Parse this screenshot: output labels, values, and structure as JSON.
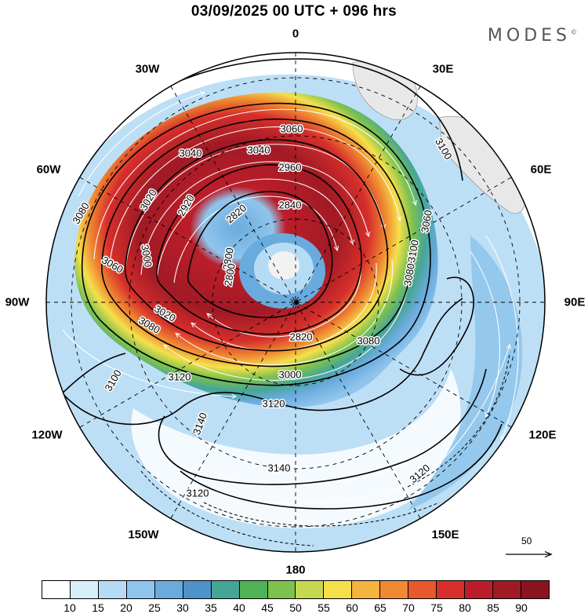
{
  "header": {
    "title": "03/09/2025  00 UTC  + 096 hrs",
    "brand": "MODES",
    "brand_mark": "©"
  },
  "longitudes": {
    "top": "0",
    "ne30": "30E",
    "ne60": "60E",
    "east": "90E",
    "se120": "120E",
    "se150": "150E",
    "bottom": "180",
    "sw150": "150W",
    "sw120": "120W",
    "west": "90W",
    "nw60": "60W",
    "nw30": "30W"
  },
  "contours": {
    "labels": [
      "3060",
      "3040",
      "3040",
      "3020",
      "2960",
      "2920",
      "2840",
      "2820",
      "2800",
      "2800",
      "3000",
      "3020",
      "3080",
      "3060",
      "3080",
      "3100",
      "3100",
      "3080",
      "3060",
      "3080",
      "2820",
      "3000",
      "3120",
      "3120",
      "3100",
      "3140",
      "3140",
      "3120",
      "3120"
    ]
  },
  "colorbar": {
    "colors": [
      "#ffffff",
      "#d7eefb",
      "#b6dcf5",
      "#8fc5ec",
      "#6aabde",
      "#4e92cb",
      "#46a696",
      "#4fb355",
      "#7ec24e",
      "#c5d84f",
      "#f5e04c",
      "#f5b340",
      "#f08a32",
      "#e8582d",
      "#d62f2b",
      "#bb1e2a",
      "#a01a25",
      "#8a1520"
    ],
    "ticks": [
      "10",
      "15",
      "20",
      "25",
      "30",
      "35",
      "40",
      "45",
      "50",
      "55",
      "60",
      "65",
      "70",
      "75",
      "80",
      "85",
      "90"
    ]
  },
  "reference_vector": {
    "value": "50"
  }
}
